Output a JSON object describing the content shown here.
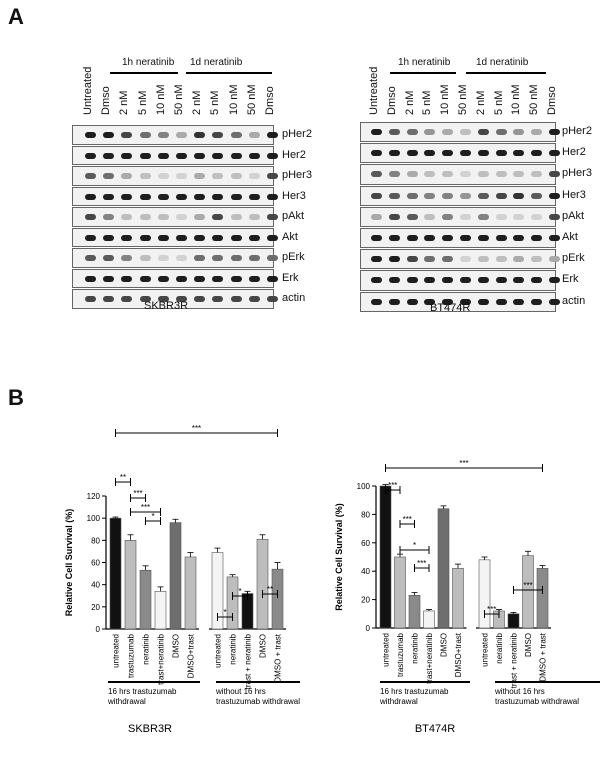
{
  "panel_a": {
    "letter": "A",
    "blots": [
      {
        "cell_line": "SKBR3R",
        "lanes": [
          "Untreated",
          "Dmso",
          "2 nM",
          "5 nM",
          "10 nM",
          "50 nM",
          "2 nM",
          "5 nM",
          "10 nM",
          "50 nM",
          "Dmso"
        ],
        "groups": [
          {
            "label": "1h neratinib"
          },
          {
            "label": "1d neratinib"
          }
        ],
        "proteins": [
          "pHer2",
          "Her2",
          "pHer3",
          "Her3",
          "pAkt",
          "Akt",
          "pErk",
          "Erk",
          "actin"
        ]
      },
      {
        "cell_line": "BT474R",
        "lanes": [
          "Untreated",
          "Dmso",
          "2 nM",
          "5 nM",
          "10 nM",
          "50 nM",
          "2 nM",
          "5 nM",
          "10 nM",
          "50 nM",
          "Dmso"
        ],
        "groups": [
          {
            "label": "1h neratinib"
          },
          {
            "label": "1d neratinib"
          }
        ],
        "proteins": [
          "pHer2",
          "Her2",
          "pHer3",
          "Her3",
          "pAkt",
          "Akt",
          "pErk",
          "Erk",
          "actin"
        ]
      }
    ]
  },
  "panel_b": {
    "letter": "B",
    "bar_colors": {
      "black": "#111111",
      "lightgray": "#bdbdbd",
      "gray": "#8a8a8a",
      "darkgray": "#6e6e6e",
      "white": "#f4f4f4"
    },
    "chart_data": [
      {
        "type": "bar",
        "title": "SKBR3R",
        "ylabel": "Relative Cell Survival (%)",
        "ylim": [
          0,
          120
        ],
        "yticks": [
          "0",
          "20",
          "40",
          "60",
          "80",
          "100",
          "120"
        ],
        "categories": [
          "untreated",
          "trastuzumab",
          "neratinib",
          "trast+neratinib",
          "DMSO",
          "DMSO+trast",
          "untreated",
          "neratinib",
          "trast + neratinib",
          "DMSO",
          "DMSO + trast"
        ],
        "values": [
          100,
          80,
          53,
          34,
          96,
          65,
          69,
          47,
          32,
          81,
          54
        ],
        "errors": [
          1,
          5,
          4,
          4,
          3,
          4,
          4,
          2,
          2,
          4,
          6
        ],
        "bar_fill": [
          "black",
          "lightgray",
          "gray",
          "white",
          "darkgray",
          "lightgray",
          "white",
          "lightgray",
          "black",
          "lightgray",
          "gray"
        ],
        "groups": [
          "16 hrs trastuzumab withdrawal",
          "without 16 hrs trastuzumab withdrawal"
        ],
        "significance": [
          "**",
          "***",
          "***",
          "*",
          "***",
          "*",
          "*",
          "**"
        ]
      },
      {
        "type": "bar",
        "title": "BT474R",
        "ylabel": "Relative Cell Survival (%)",
        "ylim": [
          0,
          100
        ],
        "yticks": [
          "0",
          "20",
          "40",
          "60",
          "80",
          "100"
        ],
        "categories": [
          "untreated",
          "trastuzumab",
          "neratinib",
          "trast+neratinib",
          "DMSO",
          "DMSO+trast",
          "untreated",
          "neratinib",
          "trast + neratinib",
          "DMSO",
          "DMSO + trast"
        ],
        "values": [
          100,
          50,
          23,
          12,
          84,
          42,
          48,
          12,
          10,
          51,
          42
        ],
        "errors": [
          1,
          2,
          2,
          1,
          2,
          3,
          2,
          1,
          1,
          3,
          2
        ],
        "bar_fill": [
          "black",
          "lightgray",
          "gray",
          "white",
          "darkgray",
          "lightgray",
          "white",
          "lightgray",
          "black",
          "lightgray",
          "gray"
        ],
        "groups": [
          "16 hrs trastuzumab withdrawal",
          "without 16 hrs trastuzumab withdrawal"
        ],
        "significance": [
          "***",
          "***",
          "***",
          "*",
          "***",
          "***",
          "***"
        ]
      }
    ]
  }
}
